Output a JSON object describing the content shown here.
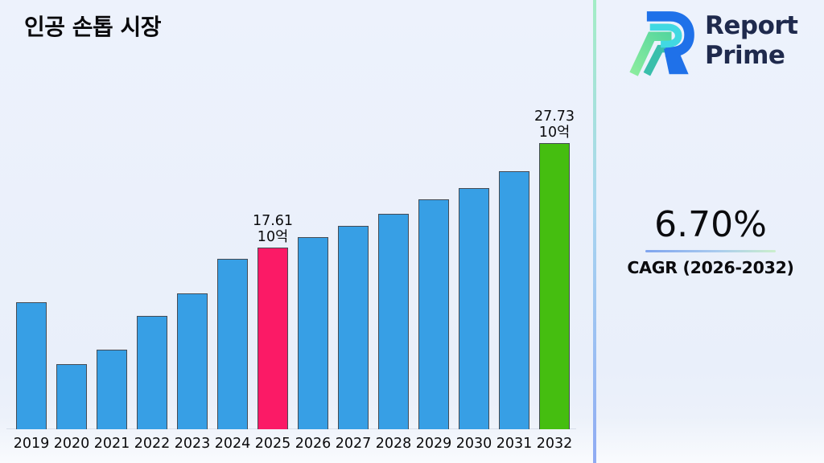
{
  "header": {
    "title": "인공 손톱 시장"
  },
  "logo": {
    "name": "Report Prime",
    "line1": "Report",
    "line2": "Prime",
    "text_color": "#1F2A4D",
    "mark_colors": {
      "blue": "#1F71E9",
      "cyan": "#41D9E2",
      "green": "#8BEC9E",
      "teal": "#39BFAB"
    }
  },
  "cagr": {
    "value": "6.70%",
    "label": "CAGR (2026-2032)"
  },
  "chart_data": {
    "type": "bar",
    "title": "인공 손톱 시장",
    "xlabel": "",
    "ylabel": "",
    "unit": "10억",
    "grid": false,
    "ylim": [
      0,
      29
    ],
    "categories": [
      "2019",
      "2020",
      "2021",
      "2022",
      "2023",
      "2024",
      "2025",
      "2026",
      "2027",
      "2028",
      "2029",
      "2030",
      "2031",
      "2032"
    ],
    "values": [
      12.3,
      6.3,
      7.7,
      11.0,
      13.2,
      16.5,
      17.61,
      18.6,
      19.7,
      20.9,
      22.3,
      23.4,
      25.0,
      27.73
    ],
    "labeled_points": [
      {
        "category": "2025",
        "value": 17.61,
        "label_lines": [
          "17.61",
          "10억"
        ]
      },
      {
        "category": "2032",
        "value": 27.73,
        "label_lines": [
          "27.73",
          "10억"
        ]
      }
    ],
    "bar_colors": {
      "default": "#379FE5",
      "2025": "#FB1A66",
      "2032": "#45BE10"
    },
    "bar_border_color": "#454B54",
    "background_color": "#EAF0FB"
  }
}
